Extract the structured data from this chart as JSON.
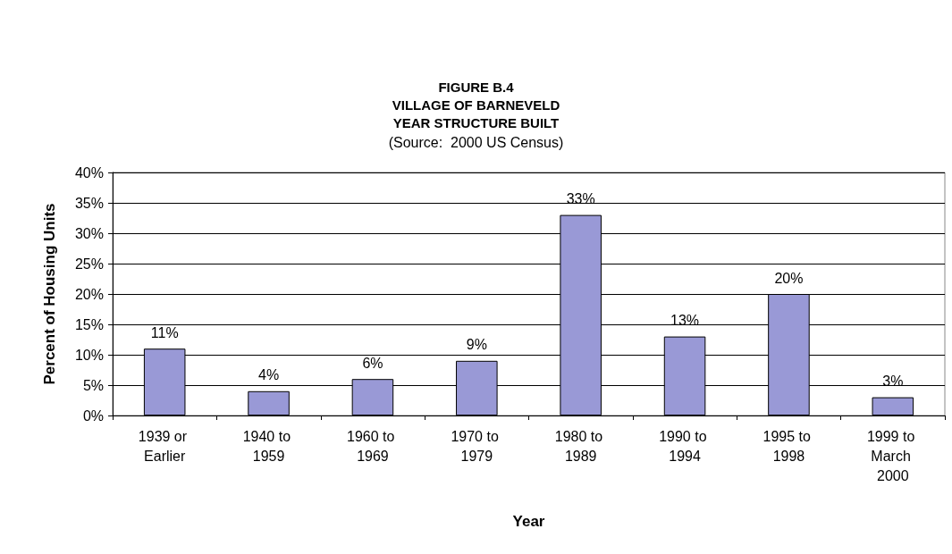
{
  "chart_data": {
    "type": "bar",
    "title": "FIGURE B.4\nVILLAGE OF BARNEVELD\nYEAR STRUCTURE BUILT",
    "subtitle": "(Source:  2000 US Census)",
    "xlabel": "Year",
    "ylabel": "Percent of Housing Units",
    "categories": [
      "1939 or Earlier",
      "1940 to 1959",
      "1960 to 1969",
      "1970 to 1979",
      "1980 to 1989",
      "1990 to 1994",
      "1995 to 1998",
      "1999 to March 2000"
    ],
    "values": [
      11,
      4,
      6,
      9,
      33,
      13,
      20,
      3
    ],
    "value_labels": [
      "11%",
      "4%",
      "6%",
      "9%",
      "33%",
      "13%",
      "20%",
      "3%"
    ],
    "color": "#9999d6",
    "ylim": [
      0,
      40
    ],
    "yticks": [
      {
        "value": 0,
        "label": "0%"
      },
      {
        "value": 5,
        "label": "5%"
      },
      {
        "value": 10,
        "label": "10%"
      },
      {
        "value": 15,
        "label": "15%"
      },
      {
        "value": 20,
        "label": "20%"
      },
      {
        "value": 25,
        "label": "25%"
      },
      {
        "value": 30,
        "label": "30%"
      },
      {
        "value": 35,
        "label": "35%"
      },
      {
        "value": 40,
        "label": "40%"
      }
    ],
    "grid": "y"
  }
}
